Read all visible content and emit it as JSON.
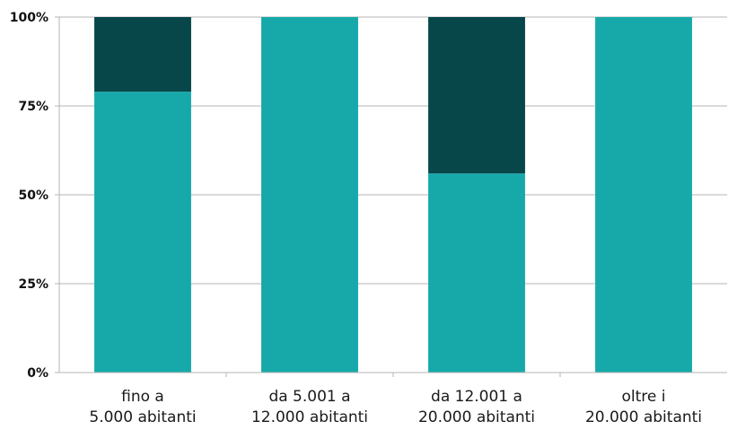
{
  "chart_data": {
    "type": "bar",
    "stacked": true,
    "percent_stacked": true,
    "categories": [
      [
        "fino a",
        "5.000 abitanti"
      ],
      [
        "da 5.001 a",
        "12.000 abitanti"
      ],
      [
        "da 12.001 a",
        "20.000 abitanti"
      ],
      [
        "oltre i",
        "20.000 abitanti"
      ]
    ],
    "series": [
      {
        "color": "#17a9a9",
        "values": [
          79,
          100,
          56,
          100
        ]
      },
      {
        "color": "#07474a",
        "values": [
          21,
          0,
          44,
          0
        ]
      }
    ],
    "yticks": [
      "0%",
      "25%",
      "50%",
      "75%",
      "100%"
    ],
    "ylim": [
      0,
      100
    ],
    "grid": true,
    "legend": "none",
    "title": "",
    "xlabel": "",
    "ylabel": ""
  }
}
